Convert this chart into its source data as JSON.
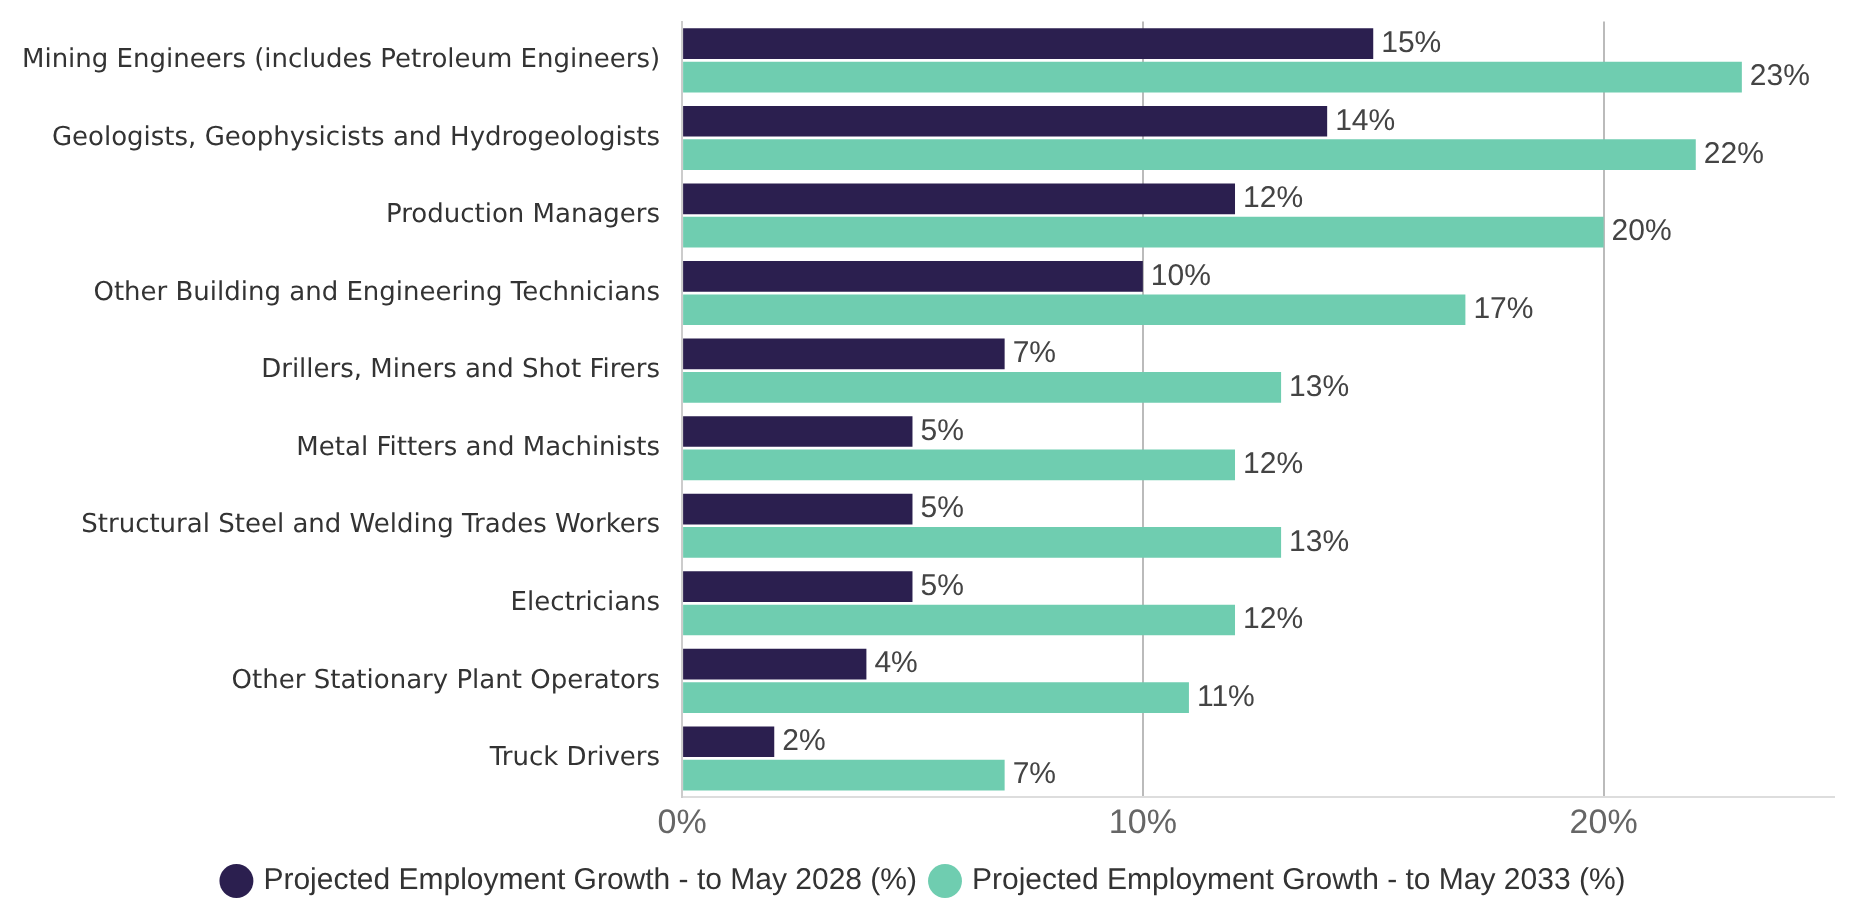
{
  "chart_data": {
    "type": "bar",
    "orientation": "horizontal",
    "categories": [
      "Mining Engineers (includes Petroleum Engineers)",
      "Geologists, Geophysicists and Hydrogeologists",
      "Production Managers",
      "Other Building and Engineering Technicians",
      "Drillers, Miners and Shot Firers",
      "Metal Fitters and Machinists",
      "Structural Steel and Welding Trades Workers",
      "Electricians",
      "Other Stationary Plant Operators",
      "Truck Drivers"
    ],
    "series": [
      {
        "name": "Projected Employment Growth - to May 2028 (%)",
        "color": "#2b1f4f",
        "values": [
          15,
          14,
          12,
          10,
          7,
          5,
          5,
          5,
          4,
          2
        ],
        "value_labels": [
          "15%",
          "14%",
          "12%",
          "10%",
          "7%",
          "5%",
          "5%",
          "5%",
          "4%",
          "2%"
        ]
      },
      {
        "name": "Projected Employment Growth - to May 2033 (%)",
        "color": "#6fcdb0",
        "values": [
          23,
          22,
          20,
          17,
          13,
          12,
          13,
          12,
          11,
          7
        ],
        "value_labels": [
          "23%",
          "22%",
          "20%",
          "17%",
          "13%",
          "12%",
          "13%",
          "12%",
          "11%",
          "7%"
        ]
      }
    ],
    "xlim": [
      0,
      25
    ],
    "xticks": [
      {
        "value": 0,
        "label": "0%"
      },
      {
        "value": 10,
        "label": "10%"
      },
      {
        "value": 20,
        "label": "20%"
      }
    ],
    "grid": "x",
    "legend": "bottom"
  }
}
